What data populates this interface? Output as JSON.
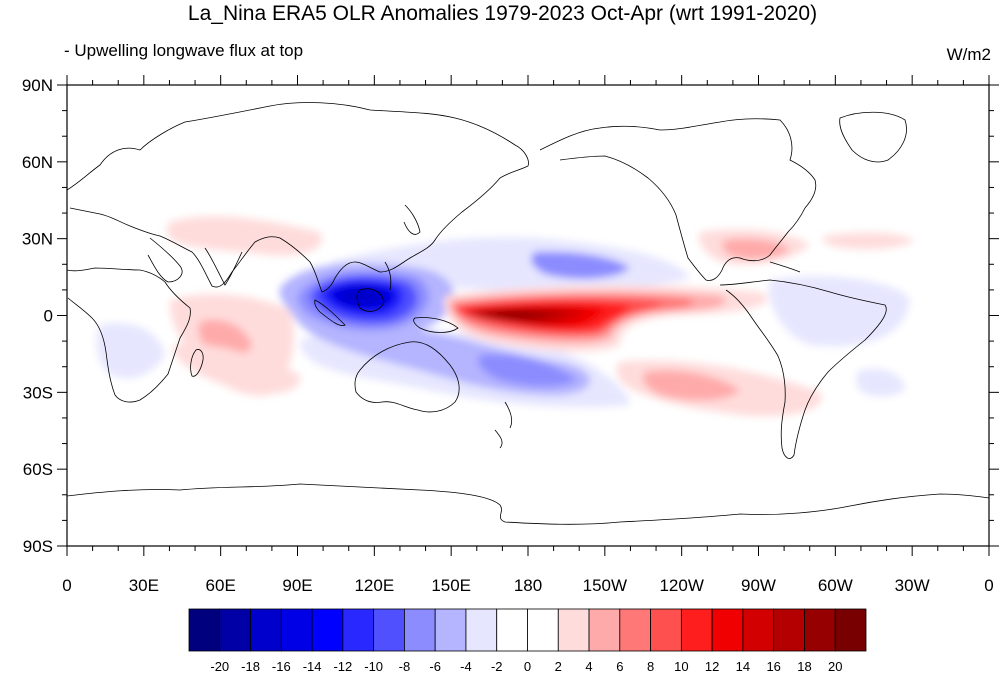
{
  "title": "La_Nina ERA5 OLR Anomalies 1979-2023 Oct-Apr (wrt 1991-2020)",
  "left_string": "- Upwelling longwave flux at top",
  "right_string": "W/m2",
  "lat_labels": [
    "90N",
    "60N",
    "30N",
    "0",
    "30S",
    "60S",
    "90S"
  ],
  "lon_labels": [
    "0",
    "30E",
    "60E",
    "90E",
    "120E",
    "150E",
    "180",
    "150W",
    "120W",
    "90W",
    "60W",
    "30W",
    "0"
  ],
  "colorbar": {
    "labels": [
      "-20",
      "-18",
      "-16",
      "-14",
      "-12",
      "-10",
      "-8",
      "-6",
      "-4",
      "-2",
      "0",
      "2",
      "4",
      "6",
      "8",
      "10",
      "12",
      "14",
      "16",
      "18",
      "20"
    ],
    "colors": [
      "#00007f",
      "#0000a6",
      "#0000cc",
      "#0000e6",
      "#0000ff",
      "#2828ff",
      "#5050ff",
      "#8c8cff",
      "#b4b4ff",
      "#e6e6ff",
      "#ffffff",
      "#ffffff",
      "#ffdcdc",
      "#ffaaaa",
      "#ff7878",
      "#ff5050",
      "#ff1e1e",
      "#f00000",
      "#d20000",
      "#b40000",
      "#960000",
      "#780000"
    ]
  },
  "anomaly_regions": [
    {
      "name": "maritime-continent-core",
      "lon": 120,
      "lat": 8,
      "value": -20
    },
    {
      "name": "maritime-continent-south",
      "lon": 130,
      "lat": -10,
      "value": -8
    },
    {
      "name": "south-pacific-convergence",
      "lon": 165,
      "lat": -22,
      "value": -8
    },
    {
      "name": "north-pacific-subtropics",
      "lon": 195,
      "lat": 18,
      "value": -6
    },
    {
      "name": "central-pacific-equator",
      "lon": 180,
      "lat": 0,
      "value": 20
    },
    {
      "name": "south-east-pacific",
      "lon": 235,
      "lat": -25,
      "value": 6
    },
    {
      "name": "gulf-of-mexico",
      "lon": 270,
      "lat": 25,
      "value": 6
    },
    {
      "name": "amazon",
      "lon": 300,
      "lat": -2,
      "value": -6
    },
    {
      "name": "indian-ocean-south",
      "lon": 62,
      "lat": -10,
      "value": 6
    }
  ]
}
